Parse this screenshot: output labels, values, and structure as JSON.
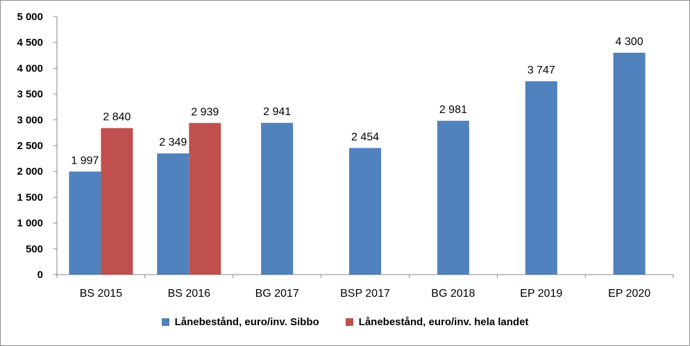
{
  "chart_data": {
    "type": "bar",
    "categories": [
      "BS 2015",
      "BS 2016",
      "BG 2017",
      "BSP 2017",
      "BG 2018",
      "EP 2019",
      "EP 2020"
    ],
    "series": [
      {
        "name": "Lånebestånd, euro/inv. Sibbo",
        "color": "#4f81bd",
        "values": [
          1997,
          2349,
          2941,
          2454,
          2981,
          3747,
          4300
        ],
        "labels": [
          "1 997",
          "2 349",
          "2 941",
          "2 454",
          "2 981",
          "3 747",
          "4 300"
        ]
      },
      {
        "name": "Lånebestånd, euro/inv. hela landet",
        "color": "#c0504d",
        "values": [
          2840,
          2939,
          null,
          null,
          null,
          null,
          null
        ],
        "labels": [
          "2 840",
          "2 939",
          null,
          null,
          null,
          null,
          null
        ]
      }
    ],
    "yticks": [
      0,
      500,
      1000,
      1500,
      2000,
      2500,
      3000,
      3500,
      4000,
      4500,
      5000
    ],
    "ytick_labels": [
      "0",
      "500",
      "1 000",
      "1 500",
      "2 000",
      "2 500",
      "3 000",
      "3 500",
      "4 000",
      "4 500",
      "5 000"
    ],
    "ylim": [
      0,
      5000
    ],
    "grid": false,
    "legend_position": "bottom",
    "title": "",
    "xlabel": "",
    "ylabel": ""
  }
}
